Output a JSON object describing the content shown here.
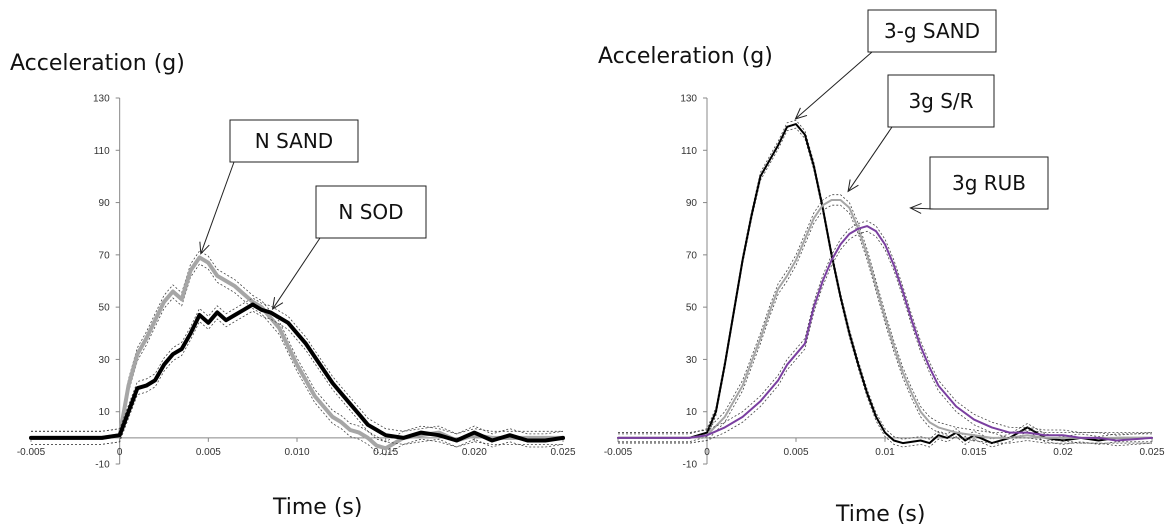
{
  "chart_data": [
    {
      "type": "line",
      "title": "",
      "xlabel": "Time (s)",
      "ylabel": "Acceleration (g)",
      "xlim": [
        -0.005,
        0.025
      ],
      "ylim": [
        -10,
        130
      ],
      "x_tick_labels": [
        "-0.005",
        "0",
        "0.005",
        "0.010",
        "0.015",
        "0.020",
        "0.025"
      ],
      "x_tick_values": [
        -0.005,
        0,
        0.005,
        0.01,
        0.015,
        0.02,
        0.025
      ],
      "y_tick_labels": [
        "-10",
        "10",
        "30",
        "50",
        "70",
        "90",
        "110",
        "130"
      ],
      "y_tick_values": [
        -10,
        10,
        30,
        50,
        70,
        90,
        110,
        130
      ],
      "grid": false,
      "series": [
        {
          "name": "N SAND",
          "color": "#a6a6a6",
          "band": 2.5,
          "points": [
            [
              -0.005,
              0
            ],
            [
              -0.001,
              0
            ],
            [
              0,
              1
            ],
            [
              0.0005,
              20
            ],
            [
              0.001,
              32
            ],
            [
              0.0015,
              38
            ],
            [
              0.002,
              45
            ],
            [
              0.0025,
              52
            ],
            [
              0.003,
              56
            ],
            [
              0.0035,
              53
            ],
            [
              0.004,
              64
            ],
            [
              0.0045,
              69
            ],
            [
              0.005,
              67
            ],
            [
              0.0055,
              62
            ],
            [
              0.006,
              60
            ],
            [
              0.0065,
              58
            ],
            [
              0.007,
              55
            ],
            [
              0.0075,
              52
            ],
            [
              0.008,
              50
            ],
            [
              0.0085,
              46
            ],
            [
              0.009,
              42
            ],
            [
              0.0095,
              35
            ],
            [
              0.01,
              28
            ],
            [
              0.0105,
              22
            ],
            [
              0.011,
              16
            ],
            [
              0.0115,
              12
            ],
            [
              0.012,
              8
            ],
            [
              0.0125,
              6
            ],
            [
              0.013,
              3
            ],
            [
              0.0135,
              2
            ],
            [
              0.014,
              0
            ],
            [
              0.0145,
              -3
            ],
            [
              0.015,
              -4
            ],
            [
              0.0155,
              -2
            ],
            [
              0.016,
              0
            ],
            [
              0.017,
              1
            ],
            [
              0.018,
              2
            ],
            [
              0.019,
              -1
            ],
            [
              0.02,
              1
            ],
            [
              0.021,
              0
            ],
            [
              0.022,
              0
            ],
            [
              0.023,
              0
            ],
            [
              0.025,
              0
            ]
          ]
        },
        {
          "name": "N SOD",
          "color": "#000000",
          "band": 2.5,
          "points": [
            [
              -0.005,
              0
            ],
            [
              -0.001,
              0
            ],
            [
              0,
              1
            ],
            [
              0.0005,
              10
            ],
            [
              0.001,
              19
            ],
            [
              0.0015,
              20
            ],
            [
              0.002,
              22
            ],
            [
              0.0025,
              28
            ],
            [
              0.003,
              32
            ],
            [
              0.0035,
              34
            ],
            [
              0.004,
              40
            ],
            [
              0.0045,
              47
            ],
            [
              0.005,
              44
            ],
            [
              0.0055,
              48
            ],
            [
              0.006,
              45
            ],
            [
              0.0065,
              47
            ],
            [
              0.007,
              49
            ],
            [
              0.0075,
              51
            ],
            [
              0.008,
              49
            ],
            [
              0.0085,
              48
            ],
            [
              0.009,
              46
            ],
            [
              0.0095,
              44
            ],
            [
              0.01,
              40
            ],
            [
              0.0105,
              36
            ],
            [
              0.011,
              31
            ],
            [
              0.0115,
              26
            ],
            [
              0.012,
              21
            ],
            [
              0.0125,
              17
            ],
            [
              0.013,
              13
            ],
            [
              0.0135,
              9
            ],
            [
              0.014,
              5
            ],
            [
              0.0145,
              3
            ],
            [
              0.015,
              1
            ],
            [
              0.016,
              0
            ],
            [
              0.017,
              2
            ],
            [
              0.018,
              1
            ],
            [
              0.019,
              -1
            ],
            [
              0.02,
              2
            ],
            [
              0.021,
              -1
            ],
            [
              0.022,
              1
            ],
            [
              0.023,
              -1
            ],
            [
              0.024,
              -1
            ],
            [
              0.025,
              0
            ]
          ]
        }
      ],
      "annotations": [
        {
          "text": "N SAND",
          "target": [
            0.0045,
            69
          ]
        },
        {
          "text": "N SOD",
          "target": [
            0.0085,
            48
          ]
        }
      ]
    },
    {
      "type": "line",
      "title": "",
      "xlabel": "Time (s)",
      "ylabel": "Acceleration (g)",
      "xlim": [
        -0.005,
        0.025
      ],
      "ylim": [
        -10,
        130
      ],
      "x_tick_labels": [
        "-0.005",
        "0",
        "0.005",
        "0.01",
        "0.015",
        "0.02",
        "0.025"
      ],
      "x_tick_values": [
        -0.005,
        0,
        0.005,
        0.01,
        0.015,
        0.02,
        0.025
      ],
      "y_tick_labels": [
        "-10",
        "10",
        "30",
        "50",
        "70",
        "90",
        "110",
        "130"
      ],
      "y_tick_values": [
        -10,
        10,
        30,
        50,
        70,
        90,
        110,
        130
      ],
      "grid": false,
      "series": [
        {
          "name": "3-g SAND",
          "color": "#000000",
          "band": 1.5,
          "points": [
            [
              -0.005,
              0
            ],
            [
              -0.001,
              0
            ],
            [
              0,
              2
            ],
            [
              0.0005,
              10
            ],
            [
              0.001,
              28
            ],
            [
              0.0015,
              48
            ],
            [
              0.002,
              68
            ],
            [
              0.0025,
              85
            ],
            [
              0.003,
              100
            ],
            [
              0.0035,
              106
            ],
            [
              0.004,
              112
            ],
            [
              0.0045,
              119
            ],
            [
              0.005,
              120
            ],
            [
              0.0055,
              116
            ],
            [
              0.006,
              104
            ],
            [
              0.0065,
              88
            ],
            [
              0.007,
              70
            ],
            [
              0.0075,
              54
            ],
            [
              0.008,
              40
            ],
            [
              0.0085,
              28
            ],
            [
              0.009,
              17
            ],
            [
              0.0095,
              8
            ],
            [
              0.01,
              2
            ],
            [
              0.0105,
              -1
            ],
            [
              0.011,
              -2
            ],
            [
              0.012,
              -1
            ],
            [
              0.0125,
              -2
            ],
            [
              0.013,
              1
            ],
            [
              0.0135,
              0
            ],
            [
              0.014,
              2
            ],
            [
              0.0145,
              -1
            ],
            [
              0.015,
              1
            ],
            [
              0.016,
              -2
            ],
            [
              0.017,
              0
            ],
            [
              0.0175,
              2
            ],
            [
              0.018,
              4
            ],
            [
              0.0185,
              2
            ],
            [
              0.019,
              0
            ],
            [
              0.02,
              -1
            ],
            [
              0.021,
              0
            ],
            [
              0.022,
              -1
            ],
            [
              0.023,
              0
            ],
            [
              0.025,
              0
            ]
          ]
        },
        {
          "name": "3g S/R",
          "color": "#a6a6a6",
          "band": 2,
          "points": [
            [
              -0.005,
              0
            ],
            [
              -0.001,
              0
            ],
            [
              0,
              1
            ],
            [
              0.001,
              8
            ],
            [
              0.002,
              20
            ],
            [
              0.003,
              38
            ],
            [
              0.0035,
              48
            ],
            [
              0.004,
              57
            ],
            [
              0.0045,
              62
            ],
            [
              0.005,
              68
            ],
            [
              0.0055,
              76
            ],
            [
              0.006,
              84
            ],
            [
              0.0065,
              89
            ],
            [
              0.007,
              91
            ],
            [
              0.0075,
              91
            ],
            [
              0.008,
              88
            ],
            [
              0.0085,
              80
            ],
            [
              0.009,
              70
            ],
            [
              0.0095,
              58
            ],
            [
              0.01,
              46
            ],
            [
              0.0105,
              35
            ],
            [
              0.011,
              25
            ],
            [
              0.0115,
              17
            ],
            [
              0.012,
              10
            ],
            [
              0.0125,
              6
            ],
            [
              0.013,
              4
            ],
            [
              0.014,
              2
            ],
            [
              0.015,
              1
            ],
            [
              0.016,
              0
            ],
            [
              0.017,
              0
            ],
            [
              0.018,
              1
            ],
            [
              0.019,
              0
            ],
            [
              0.02,
              0
            ],
            [
              0.022,
              0
            ],
            [
              0.025,
              0
            ]
          ]
        },
        {
          "name": "3g RUB",
          "color": "#7a3fa0",
          "band": 2,
          "points": [
            [
              -0.005,
              0
            ],
            [
              -0.001,
              0
            ],
            [
              0,
              1
            ],
            [
              0.001,
              4
            ],
            [
              0.002,
              8
            ],
            [
              0.003,
              14
            ],
            [
              0.004,
              22
            ],
            [
              0.0045,
              28
            ],
            [
              0.005,
              32
            ],
            [
              0.0055,
              36
            ],
            [
              0.006,
              50
            ],
            [
              0.0065,
              60
            ],
            [
              0.007,
              68
            ],
            [
              0.0075,
              74
            ],
            [
              0.008,
              78
            ],
            [
              0.0085,
              80
            ],
            [
              0.009,
              81
            ],
            [
              0.0095,
              79
            ],
            [
              0.01,
              74
            ],
            [
              0.0105,
              66
            ],
            [
              0.011,
              56
            ],
            [
              0.0115,
              45
            ],
            [
              0.012,
              35
            ],
            [
              0.0125,
              27
            ],
            [
              0.013,
              20
            ],
            [
              0.014,
              12
            ],
            [
              0.015,
              7
            ],
            [
              0.016,
              4
            ],
            [
              0.017,
              2
            ],
            [
              0.018,
              2
            ],
            [
              0.019,
              1
            ],
            [
              0.02,
              1
            ],
            [
              0.021,
              0
            ],
            [
              0.022,
              0
            ],
            [
              0.023,
              -1
            ],
            [
              0.025,
              0
            ]
          ]
        }
      ],
      "annotations": [
        {
          "text": "3-g SAND",
          "target": [
            0.0048,
            121
          ]
        },
        {
          "text": "3g S/R",
          "target": [
            0.0078,
            93
          ]
        },
        {
          "text": "3g RUB",
          "target": [
            0.0112,
            88
          ]
        }
      ]
    }
  ]
}
